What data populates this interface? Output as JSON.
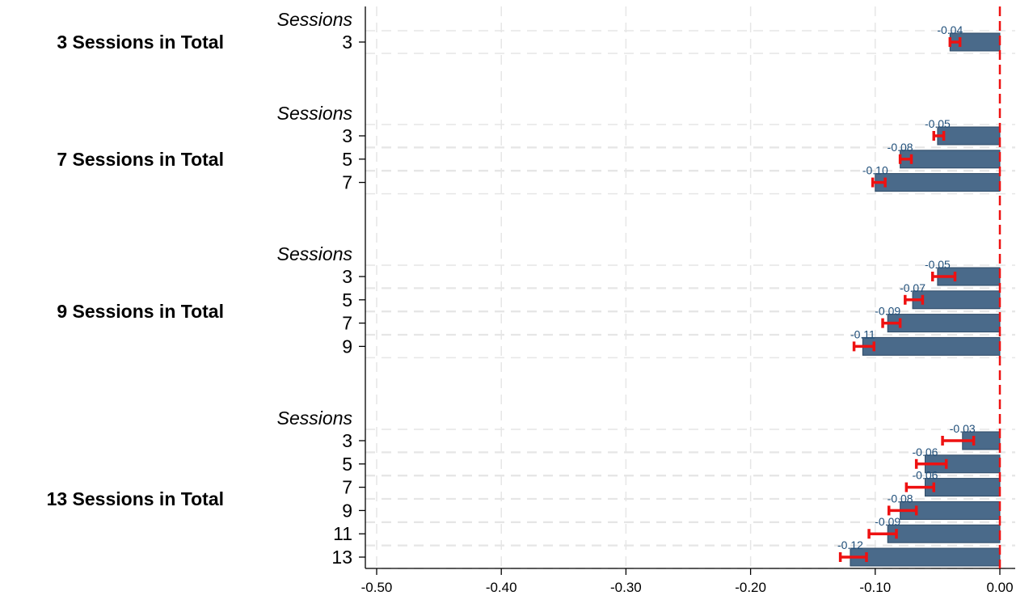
{
  "chart_data": {
    "type": "bar",
    "orientation": "horizontal",
    "xlim": [
      -0.5,
      0.0
    ],
    "xticks": [
      "-0.50",
      "-0.40",
      "-0.30",
      "-0.20",
      "-0.10",
      "0.00"
    ],
    "reference_line": 0.0,
    "grid": true,
    "colors": {
      "bar": "#4a6a8a",
      "bar_edge": "#2e4a66",
      "error": "#ee1111",
      "refline": "#ee1111",
      "label": "#1f4e79"
    },
    "groups": [
      {
        "label": "3 Sessions in Total",
        "subheader": "Sessions",
        "bars": [
          {
            "category": "3",
            "value": -0.04,
            "label": "-0.04",
            "ci": [
              -0.04,
              -0.032
            ]
          }
        ]
      },
      {
        "label": "7 Sessions in Total",
        "subheader": "Sessions",
        "bars": [
          {
            "category": "3",
            "value": -0.05,
            "label": "-0.05",
            "ci": [
              -0.053,
              -0.045
            ]
          },
          {
            "category": "5",
            "value": -0.08,
            "label": "-0.08",
            "ci": [
              -0.08,
              -0.071
            ]
          },
          {
            "category": "7",
            "value": -0.1,
            "label": "-0.10",
            "ci": [
              -0.102,
              -0.092
            ]
          }
        ]
      },
      {
        "label": "9 Sessions in Total",
        "subheader": "Sessions",
        "bars": [
          {
            "category": "3",
            "value": -0.05,
            "label": "-0.05",
            "ci": [
              -0.054,
              -0.036
            ]
          },
          {
            "category": "5",
            "value": -0.07,
            "label": "-0.07",
            "ci": [
              -0.076,
              -0.062
            ]
          },
          {
            "category": "7",
            "value": -0.09,
            "label": "-0.09",
            "ci": [
              -0.094,
              -0.08
            ]
          },
          {
            "category": "9",
            "value": -0.11,
            "label": "-0.11",
            "ci": [
              -0.117,
              -0.101
            ]
          }
        ]
      },
      {
        "label": "13 Sessions in Total",
        "subheader": "Sessions",
        "bars": [
          {
            "category": "3",
            "value": -0.03,
            "label": "-0.03",
            "ci": [
              -0.046,
              -0.021
            ]
          },
          {
            "category": "5",
            "value": -0.06,
            "label": "-0.06",
            "ci": [
              -0.067,
              -0.043
            ]
          },
          {
            "category": "7",
            "value": -0.06,
            "label": "-0.06",
            "ci": [
              -0.075,
              -0.053
            ]
          },
          {
            "category": "9",
            "value": -0.08,
            "label": "-0.08",
            "ci": [
              -0.089,
              -0.067
            ]
          },
          {
            "category": "11",
            "value": -0.09,
            "label": "-0.09",
            "ci": [
              -0.105,
              -0.083
            ]
          },
          {
            "category": "13",
            "value": -0.12,
            "label": "-0.12",
            "ci": [
              -0.128,
              -0.107
            ]
          }
        ]
      }
    ]
  }
}
